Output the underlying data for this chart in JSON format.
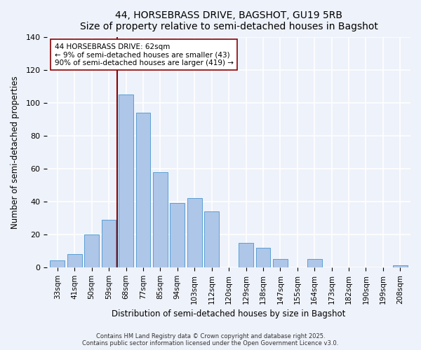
{
  "title": "44, HORSEBRASS DRIVE, BAGSHOT, GU19 5RB",
  "subtitle": "Size of property relative to semi-detached houses in Bagshot",
  "xlabel": "Distribution of semi-detached houses by size in Bagshot",
  "ylabel": "Number of semi-detached properties",
  "bar_labels": [
    "33sqm",
    "41sqm",
    "50sqm",
    "59sqm",
    "68sqm",
    "77sqm",
    "85sqm",
    "94sqm",
    "103sqm",
    "112sqm",
    "120sqm",
    "129sqm",
    "138sqm",
    "147sqm",
    "155sqm",
    "164sqm",
    "173sqm",
    "182sqm",
    "190sqm",
    "199sqm",
    "208sqm"
  ],
  "bar_values": [
    4,
    8,
    20,
    29,
    105,
    94,
    58,
    39,
    42,
    34,
    0,
    15,
    12,
    5,
    0,
    5,
    0,
    0,
    0,
    0,
    1
  ],
  "bar_color": "#aec6e8",
  "bar_edge_color": "#5a9fd4",
  "background_color": "#eef2fa",
  "grid_color": "#ffffff",
  "ylim": [
    0,
    140
  ],
  "yticks": [
    0,
    20,
    40,
    60,
    80,
    100,
    120,
    140
  ],
  "annotation_title": "44 HORSEBRASS DRIVE: 62sqm",
  "annotation_line1": "← 9% of semi-detached houses are smaller (43)",
  "annotation_line2": "90% of semi-detached houses are larger (419) →",
  "redline_bar_index": 3,
  "footer1": "Contains HM Land Registry data © Crown copyright and database right 2025.",
  "footer2": "Contains public sector information licensed under the Open Government Licence v3.0."
}
